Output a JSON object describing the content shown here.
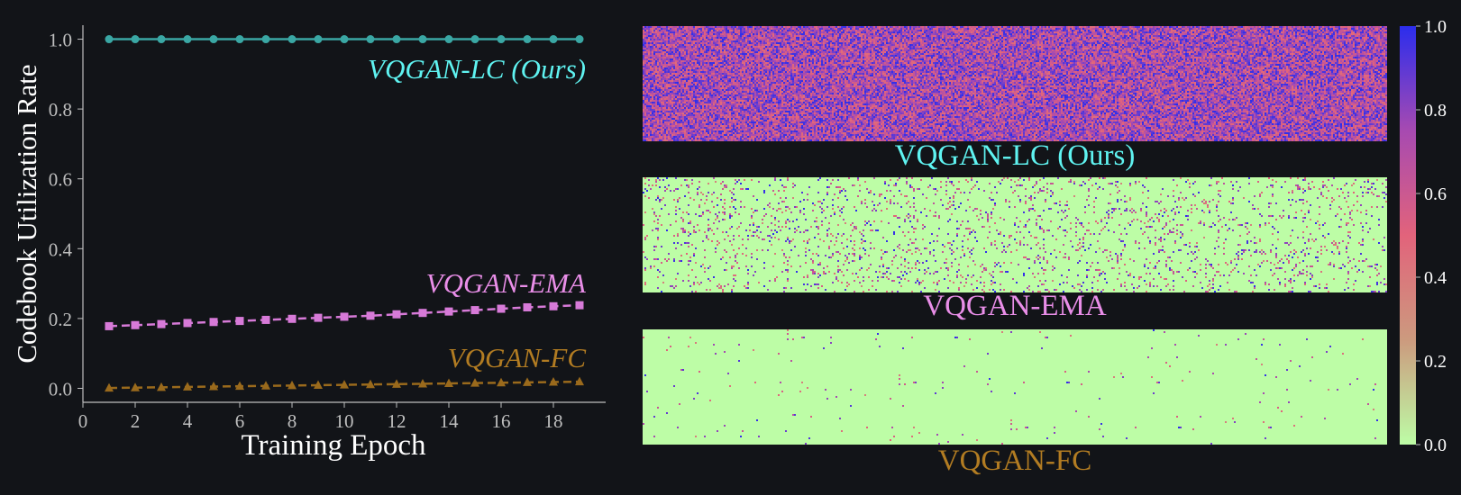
{
  "colors": {
    "background": "#121418",
    "axis": "#bfbfbf",
    "lc": "#3aa7a4",
    "lc_text": "#5ff3f1",
    "ema": "#d77ad8",
    "ema_text": "#e98ee8",
    "fc": "#9a6a1c",
    "fc_text": "#b27c22"
  },
  "chart_data": [
    {
      "type": "line",
      "xlabel": "Training Epoch",
      "ylabel": "Codebook Utilization Rate",
      "xlim": [
        0,
        20
      ],
      "ylim": [
        -0.04,
        1.04
      ],
      "xticks": [
        0,
        2,
        4,
        6,
        8,
        10,
        12,
        14,
        16,
        18
      ],
      "yticks": [
        0.0,
        0.2,
        0.4,
        0.6,
        0.8,
        1.0
      ],
      "x": [
        1,
        2,
        3,
        4,
        5,
        6,
        7,
        8,
        9,
        10,
        11,
        12,
        13,
        14,
        15,
        16,
        17,
        18,
        19
      ],
      "series": [
        {
          "name": "VQGAN-LC (Ours)",
          "marker": "circle",
          "linestyle": "solid",
          "values": [
            1.0,
            1.0,
            1.0,
            1.0,
            1.0,
            1.0,
            1.0,
            1.0,
            1.0,
            1.0,
            1.0,
            1.0,
            1.0,
            1.0,
            1.0,
            1.0,
            1.0,
            1.0,
            1.0
          ]
        },
        {
          "name": "VQGAN-EMA",
          "marker": "square",
          "linestyle": "dashed",
          "values": [
            0.178,
            0.181,
            0.184,
            0.187,
            0.19,
            0.193,
            0.196,
            0.199,
            0.202,
            0.205,
            0.208,
            0.212,
            0.216,
            0.22,
            0.224,
            0.228,
            0.232,
            0.235,
            0.238
          ]
        },
        {
          "name": "VQGAN-FC",
          "marker": "triangle",
          "linestyle": "dashed",
          "values": [
            0.001,
            0.002,
            0.003,
            0.004,
            0.005,
            0.006,
            0.007,
            0.008,
            0.009,
            0.01,
            0.011,
            0.012,
            0.013,
            0.014,
            0.015,
            0.016,
            0.017,
            0.018,
            0.019
          ]
        }
      ]
    },
    {
      "type": "heatmap",
      "colorbar": {
        "range": [
          0.0,
          1.0
        ],
        "ticks": [
          0.0,
          0.2,
          0.4,
          0.6,
          0.8,
          1.0
        ],
        "colors": [
          "#bdfda6",
          "#cc9a7e",
          "#e2637b",
          "#a74ab1",
          "#2b2ded"
        ]
      },
      "panels": [
        {
          "name": "VQGAN-LC (Ours)",
          "utilization": 1.0
        },
        {
          "name": "VQGAN-EMA",
          "utilization": 0.24
        },
        {
          "name": "VQGAN-FC",
          "utilization": 0.02
        }
      ]
    }
  ]
}
